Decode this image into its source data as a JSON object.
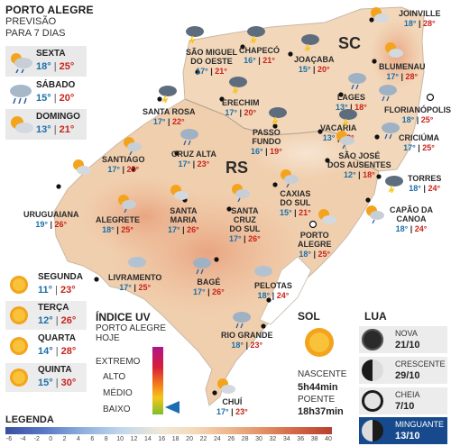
{
  "header": {
    "title": "PORTO ALEGRE",
    "line2": "PREVISÃO",
    "line3": "PARA 7 DIAS"
  },
  "forecast_top": [
    {
      "day": "SEXTA",
      "min": "18°",
      "max": "25°",
      "icon": "partly-cloudy-rain-icon"
    },
    {
      "day": "SÁBADO",
      "min": "15°",
      "max": "20°",
      "icon": "rain-cloud-icon"
    },
    {
      "day": "DOMINGO",
      "min": "13°",
      "max": "21°",
      "icon": "partly-cloudy-icon"
    }
  ],
  "forecast_bottom": [
    {
      "day": "SEGUNDA",
      "min": "11°",
      "max": "23°",
      "icon": "sun-icon"
    },
    {
      "day": "TERÇA",
      "min": "12°",
      "max": "26°",
      "icon": "sun-icon"
    },
    {
      "day": "QUARTA",
      "min": "14°",
      "max": "28°",
      "icon": "sun-icon"
    },
    {
      "day": "QUINTA",
      "min": "15°",
      "max": "30°",
      "icon": "sun-icon"
    }
  ],
  "states": {
    "rs": "RS",
    "sc": "SC"
  },
  "cities": [
    {
      "name": "JOINVILLE",
      "min": "18°",
      "max": "28°",
      "icon": "partly-cloudy-icon"
    },
    {
      "name": "SÃO MIGUEL\nDO OESTE",
      "min": "17°",
      "max": "21°",
      "icon": "storm-icon"
    },
    {
      "name": "CHAPECÓ",
      "min": "16°",
      "max": "21°",
      "icon": "storm-icon"
    },
    {
      "name": "JOAÇABA",
      "min": "15°",
      "max": "20°",
      "icon": "storm-icon"
    },
    {
      "name": "BLUMENAU",
      "min": "17°",
      "max": "28°",
      "icon": "partly-cloudy-icon"
    },
    {
      "name": "LAGES",
      "min": "13°",
      "max": "18°",
      "icon": "rain-cloud-icon"
    },
    {
      "name": "FLORIANÓPOLIS",
      "min": "18°",
      "max": "25°",
      "icon": "rain-cloud-icon"
    },
    {
      "name": "SANTA ROSA",
      "min": "17°",
      "max": "22°",
      "icon": "storm-icon"
    },
    {
      "name": "ERECHIM",
      "min": "17°",
      "max": "20°",
      "icon": "storm-icon"
    },
    {
      "name": "VACARIA",
      "min": "13°",
      "max": "18°",
      "icon": "storm-icon"
    },
    {
      "name": "PASSO\nFUNDO",
      "min": "16°",
      "max": "19°",
      "icon": "storm-icon"
    },
    {
      "name": "SÃO JOSÉ\nDOS AUSENTES",
      "min": "12°",
      "max": "18°",
      "icon": "partly-cloudy-rain-icon"
    },
    {
      "name": "CRICIÚMA",
      "min": "17°",
      "max": "25°",
      "icon": "rain-cloud-icon"
    },
    {
      "name": "TORRES",
      "min": "18°",
      "max": "24°",
      "icon": "storm-icon"
    },
    {
      "name": "CRUZ ALTA",
      "min": "17°",
      "max": "23°",
      "icon": "rain-cloud-icon"
    },
    {
      "name": "SANTIAGO",
      "min": "17°",
      "max": "25°",
      "icon": "partly-cloudy-rain-icon"
    },
    {
      "name": "URUGUAIANA",
      "min": "19°",
      "max": "26°",
      "icon": "partly-cloudy-icon"
    },
    {
      "name": "ALEGRETE",
      "min": "18°",
      "max": "25°",
      "icon": "partly-cloudy-rain-icon"
    },
    {
      "name": "SANTA\nMARIA",
      "min": "17°",
      "max": "26°",
      "icon": "partly-cloudy-icon"
    },
    {
      "name": "SANTA\nCRUZ\nDO SUL",
      "min": "17°",
      "max": "26°",
      "icon": "partly-cloudy-rain-icon"
    },
    {
      "name": "CAXIAS\nDO SUL",
      "min": "15°",
      "max": "21°",
      "icon": "partly-cloudy-rain-icon"
    },
    {
      "name": "CAPÃO DA\nCANOA",
      "min": "18°",
      "max": "24°",
      "icon": "partly-cloudy-rain-icon"
    },
    {
      "name": "PORTO\nALEGRE",
      "min": "18°",
      "max": "25°",
      "icon": "partly-cloudy-icon"
    },
    {
      "name": "LIVRAMENTO",
      "min": "17°",
      "max": "25°",
      "icon": "cloud-icon"
    },
    {
      "name": "BAGÉ",
      "min": "17°",
      "max": "26°",
      "icon": "rain-cloud-icon"
    },
    {
      "name": "PELOTAS",
      "min": "18°",
      "max": "24°",
      "icon": "cloud-icon"
    },
    {
      "name": "RIO GRANDE",
      "min": "18°",
      "max": "23°",
      "icon": "rain-cloud-icon"
    },
    {
      "name": "CHUÍ",
      "min": "17°",
      "max": "23°",
      "icon": "partly-cloudy-icon"
    }
  ],
  "uv": {
    "title": "ÍNDICE UV",
    "sub1": "PORTO ALEGRE",
    "sub2": "HOJE",
    "levels": [
      "EXTREMO",
      "ALTO",
      "MÉDIO",
      "BAIXO"
    ],
    "indicator_color": "#1a6db5"
  },
  "sun": {
    "title": "SOL",
    "rise_label": "NASCENTE",
    "rise": "5h44min",
    "set_label": "POENTE",
    "set": "18h37min",
    "icon": "sun-icon"
  },
  "moon": {
    "title": "LUA",
    "phases": [
      {
        "name": "NOVA",
        "date": "21/10",
        "active": false,
        "icon": "new-moon-icon"
      },
      {
        "name": "CRESCENTE",
        "date": "29/10",
        "active": false,
        "icon": "crescent-moon-icon"
      },
      {
        "name": "CHEIA",
        "date": "7/10",
        "active": false,
        "icon": "full-moon-icon"
      },
      {
        "name": "MINGUANTE",
        "date": "13/10",
        "active": true,
        "icon": "waning-moon-icon"
      }
    ]
  },
  "legend": {
    "title": "LEGENDA",
    "ticks": [
      "-6",
      "-4",
      "-2",
      "0",
      "2",
      "4",
      "6",
      "8",
      "10",
      "12",
      "14",
      "16",
      "18",
      "20",
      "22",
      "24",
      "26",
      "28",
      "30",
      "32",
      "34",
      "36",
      "38",
      "40"
    ]
  },
  "colors": {
    "min": "#1c6fa8",
    "max": "#c8231c",
    "land": "#f1d3b3",
    "hot": "#e9a680",
    "ocean": "#ffffff"
  }
}
